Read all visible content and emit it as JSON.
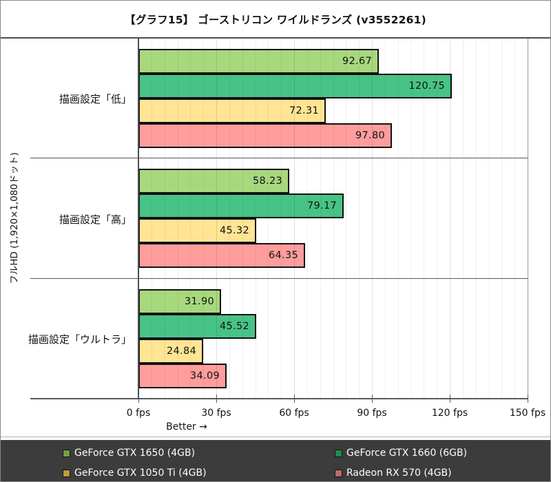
{
  "title": "【グラフ15】 ゴーストリコン ワイルドランズ (v3552261)",
  "chart_data": {
    "type": "bar",
    "orientation": "horizontal",
    "title": "【グラフ15】 ゴーストリコン ワイルドランズ (v3552261)",
    "y_axis_label": "フルHD (1,920×1,080ドット)",
    "better_annotation": "Better →",
    "categories": [
      "描画設定「低」",
      "描画設定「高」",
      "描画設定「ウルトラ」"
    ],
    "series": [
      {
        "name": "GeForce GTX 1650 (4GB)",
        "bar_color": "#a8d87e",
        "legend_color": "#6f9e48",
        "values": [
          92.67,
          58.23,
          31.9
        ]
      },
      {
        "name": "GeForce GTX 1660 (6GB)",
        "bar_color": "#47c386",
        "legend_color": "#1e8b4d",
        "values": [
          120.75,
          79.17,
          45.52
        ]
      },
      {
        "name": "GeForce GTX 1050 Ti (4GB)",
        "bar_color": "#ffe594",
        "legend_color": "#b99c3e",
        "values": [
          72.31,
          45.32,
          24.84
        ]
      },
      {
        "name": "Radeon RX 570 (4GB)",
        "bar_color": "#ff9d9d",
        "legend_color": "#bd686c",
        "values": [
          97.8,
          64.35,
          34.09
        ]
      }
    ],
    "x_axis": {
      "unit": "fps",
      "min": 0,
      "max": 150,
      "minor_step": 5,
      "major_step": 30,
      "ticks": [
        "0 fps",
        "30 fps",
        "60 fps",
        "90 fps",
        "120 fps",
        "150 fps"
      ]
    },
    "value_label_decimals": 2,
    "grid": true,
    "legend_position": "bottom"
  },
  "colors": {
    "legend_bg": "#3c3c3c",
    "legend_text": "#ffffff",
    "axis_line": "#595959",
    "bar_border": "#111111"
  }
}
